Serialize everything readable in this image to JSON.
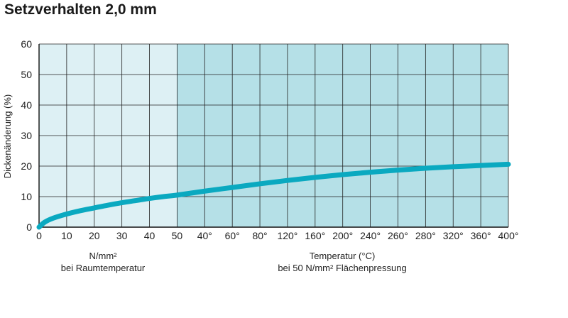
{
  "title": "Setzverhalten 2,0 mm",
  "chart_data": {
    "type": "line",
    "title": "Setzverhalten 2,0 mm",
    "ylabel": "Dickenänderung (%)",
    "ylim": [
      0,
      60
    ],
    "y_ticks": [
      "0",
      "10",
      "20",
      "30",
      "40",
      "50",
      "60"
    ],
    "grid": true,
    "x_sections": [
      {
        "name": "pressure",
        "label_line1": "N/mm²",
        "label_line2": "bei Raumtemperatur",
        "range": [
          0,
          50
        ],
        "background": "#ddf0f4",
        "ticks": [
          "0",
          "10",
          "20",
          "30",
          "40",
          "50"
        ]
      },
      {
        "name": "temperature",
        "label_line1": "Temperatur (°C)",
        "label_line2": "bei 50 N/mm² Flächenpressung",
        "range": [
          40,
          400
        ],
        "background": "#b5e0e7",
        "ticks": [
          "40°",
          "60°",
          "80°",
          "120°",
          "160°",
          "200°",
          "240°",
          "260°",
          "280°",
          "320°",
          "360°",
          "400°"
        ]
      }
    ],
    "series": [
      {
        "color": "#0aa9c0",
        "points": [
          {
            "section": "pressure",
            "x": 0,
            "y": 0
          },
          {
            "section": "pressure",
            "x": 2,
            "y": 1.6
          },
          {
            "section": "pressure",
            "x": 5,
            "y": 2.9
          },
          {
            "section": "pressure",
            "x": 10,
            "y": 4.3
          },
          {
            "section": "pressure",
            "x": 15,
            "y": 5.4
          },
          {
            "section": "pressure",
            "x": 20,
            "y": 6.3
          },
          {
            "section": "pressure",
            "x": 25,
            "y": 7.2
          },
          {
            "section": "pressure",
            "x": 30,
            "y": 8.0
          },
          {
            "section": "pressure",
            "x": 35,
            "y": 8.7
          },
          {
            "section": "pressure",
            "x": 40,
            "y": 9.4
          },
          {
            "section": "pressure",
            "x": 45,
            "y": 10.0
          },
          {
            "section": "temperature",
            "tick": 0,
            "y": 10.5
          },
          {
            "section": "temperature",
            "tick": 1,
            "y": 11.8
          },
          {
            "section": "temperature",
            "tick": 2,
            "y": 13.0
          },
          {
            "section": "temperature",
            "tick": 3,
            "y": 14.2
          },
          {
            "section": "temperature",
            "tick": 4,
            "y": 15.3
          },
          {
            "section": "temperature",
            "tick": 5,
            "y": 16.3
          },
          {
            "section": "temperature",
            "tick": 6,
            "y": 17.2
          },
          {
            "section": "temperature",
            "tick": 7,
            "y": 18.0
          },
          {
            "section": "temperature",
            "tick": 8,
            "y": 18.7
          },
          {
            "section": "temperature",
            "tick": 9,
            "y": 19.3
          },
          {
            "section": "temperature",
            "tick": 10,
            "y": 19.8
          },
          {
            "section": "temperature",
            "tick": 11,
            "y": 20.2
          },
          {
            "section": "temperature",
            "tick": 12,
            "y": 20.6
          }
        ]
      }
    ]
  }
}
